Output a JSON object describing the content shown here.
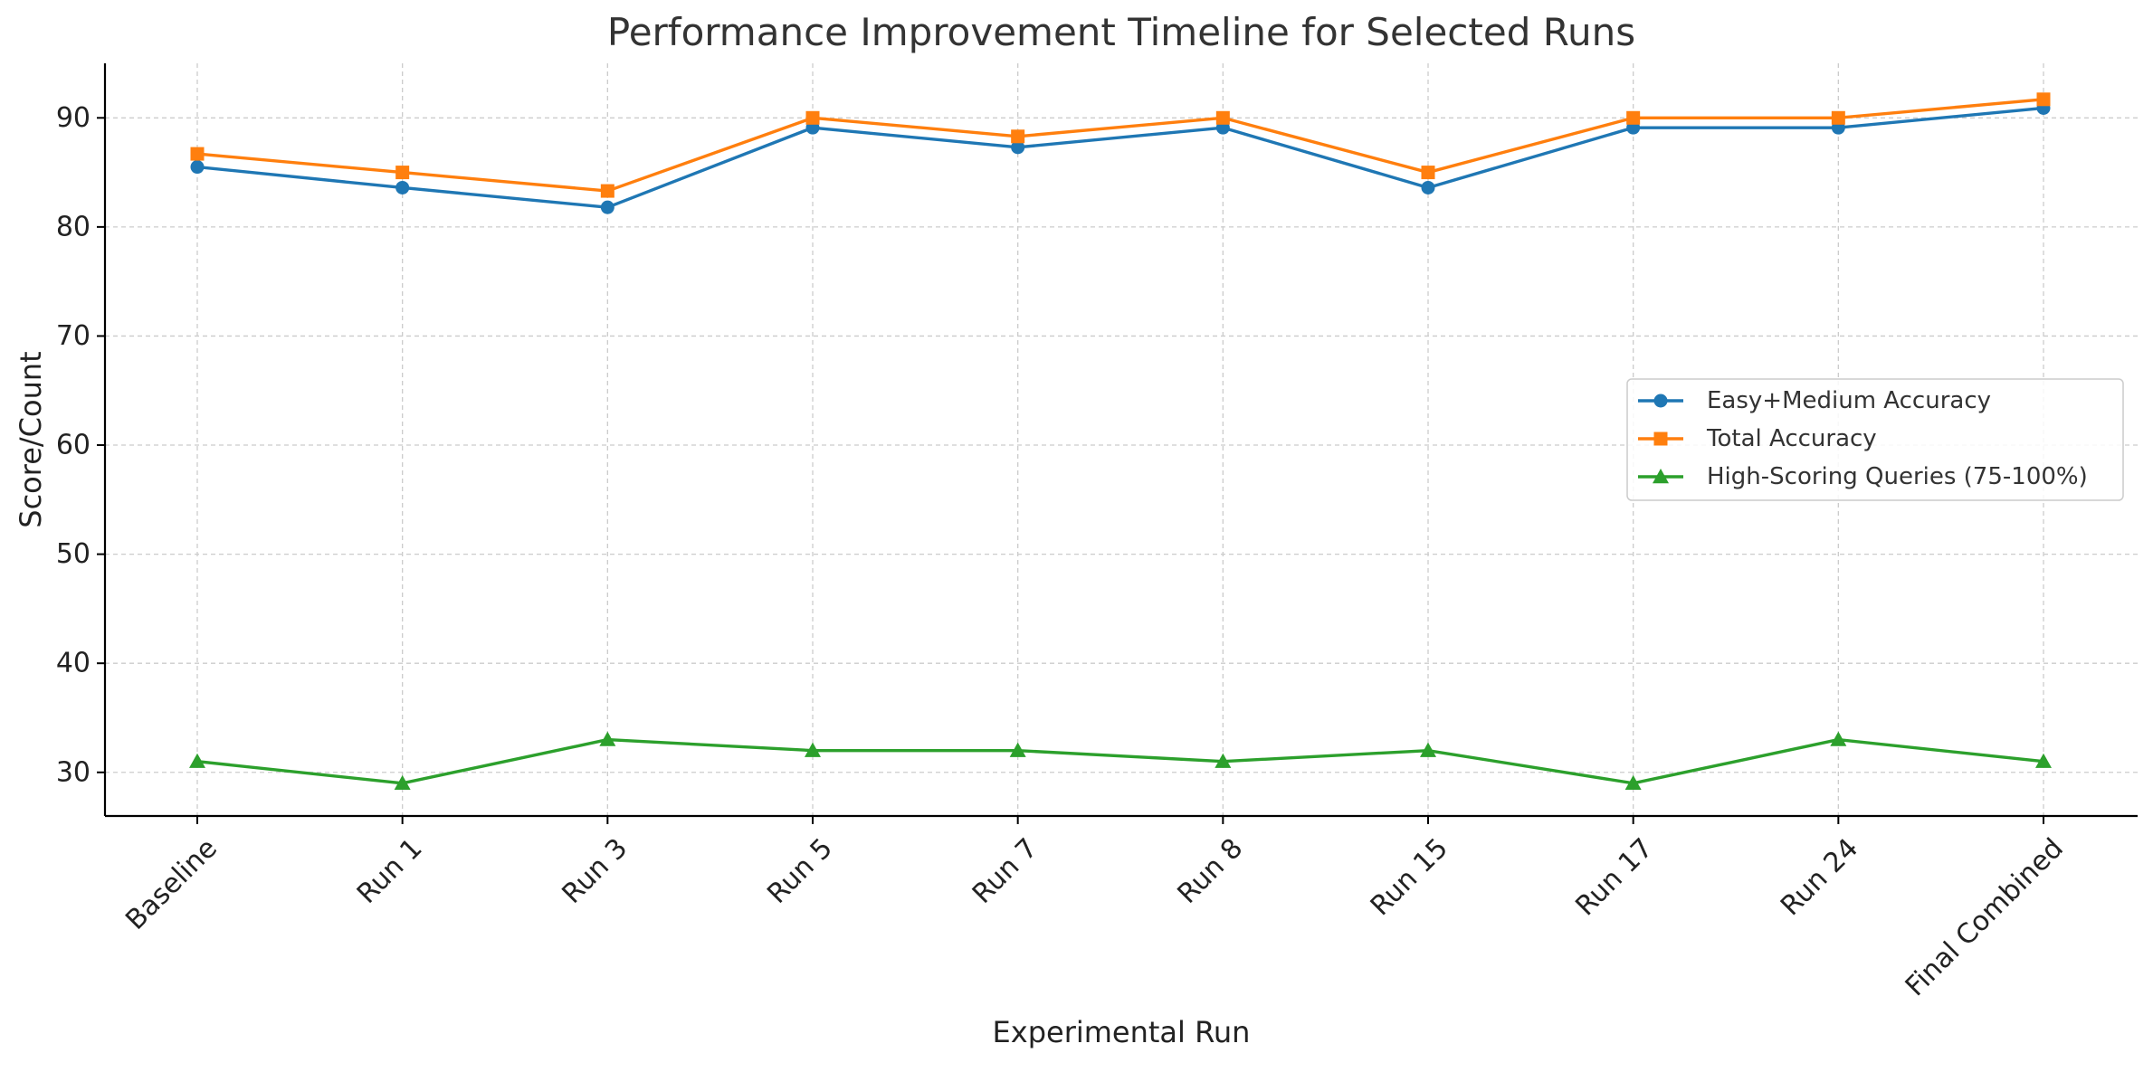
{
  "chart_data": {
    "type": "line",
    "title": "Performance Improvement Timeline for Selected Runs",
    "xlabel": "Experimental Run",
    "ylabel": "Score/Count",
    "categories": [
      "Baseline",
      "Run 1",
      "Run 3",
      "Run 5",
      "Run 7",
      "Run 8",
      "Run 15",
      "Run 17",
      "Run 24",
      "Final Combined"
    ],
    "ylim": [
      26,
      95
    ],
    "yticks": [
      30,
      40,
      50,
      60,
      70,
      80,
      90
    ],
    "grid": true,
    "legend_position": "center-right",
    "series": [
      {
        "name": "Easy+Medium Accuracy",
        "color": "#1f77b4",
        "marker": "circle",
        "values": [
          85.5,
          83.6,
          81.8,
          89.1,
          87.3,
          89.1,
          83.6,
          89.1,
          89.1,
          90.9
        ]
      },
      {
        "name": "Total Accuracy",
        "color": "#ff7f0e",
        "marker": "square",
        "values": [
          86.7,
          85.0,
          83.3,
          90.0,
          88.3,
          90.0,
          85.0,
          90.0,
          90.0,
          91.7
        ]
      },
      {
        "name": "High-Scoring Queries (75-100%)",
        "color": "#2ca02c",
        "marker": "triangle",
        "values": [
          31,
          29,
          33,
          32,
          32,
          31,
          32,
          29,
          33,
          31
        ]
      }
    ]
  }
}
